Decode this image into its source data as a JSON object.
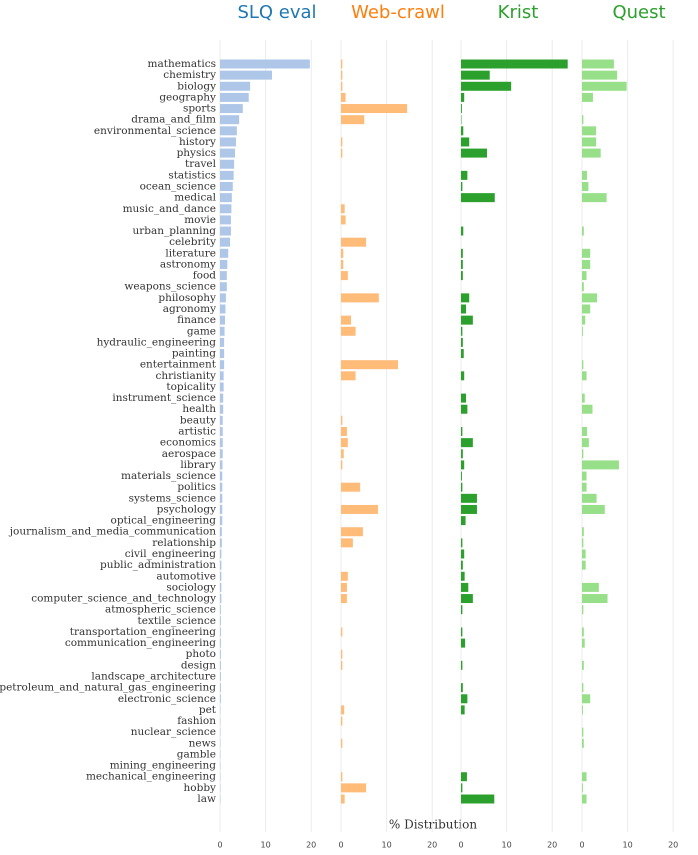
{
  "chart_data": {
    "type": "bar",
    "orientation": "horizontal",
    "xlabel": "% Distribution",
    "xlim": [
      0,
      25
    ],
    "xticks": [
      0,
      10,
      20
    ],
    "grid": true,
    "categories": [
      "mathematics",
      "chemistry",
      "biology",
      "geography",
      "sports",
      "drama_and_film",
      "environmental_science",
      "history",
      "physics",
      "travel",
      "statistics",
      "ocean_science",
      "medical",
      "music_and_dance",
      "movie",
      "urban_planning",
      "celebrity",
      "literature",
      "astronomy",
      "food",
      "weapons_science",
      "philosophy",
      "agronomy",
      "finance",
      "game",
      "hydraulic_engineering",
      "painting",
      "entertainment",
      "christianity",
      "topicality",
      "instrument_science",
      "health",
      "beauty",
      "artistic",
      "economics",
      "aerospace",
      "library",
      "materials_science",
      "politics",
      "systems_science",
      "psychology",
      "optical_engineering",
      "journalism_and_media_communication",
      "relationship",
      "civil_engineering",
      "public_administration",
      "automotive",
      "sociology",
      "computer_science_and_technology",
      "atmospheric_science",
      "textile_science",
      "transportation_engineering",
      "communication_engineering",
      "photo",
      "design",
      "landscape_architecture",
      "petroleum_and_natural_gas_engineering",
      "electronic_science",
      "pet",
      "fashion",
      "nuclear_science",
      "news",
      "gamble",
      "mining_engineering",
      "mechanical_engineering",
      "hobby",
      "law"
    ],
    "series": [
      {
        "name": "SLQ eval",
        "title_color": "#1f77b4",
        "color": "#aec7e8",
        "values": [
          19.7,
          11.4,
          6.6,
          6.3,
          5,
          4.2,
          3.7,
          3.5,
          3.3,
          3.1,
          3,
          2.8,
          2.6,
          2.5,
          2.4,
          2.4,
          2.2,
          1.8,
          1.6,
          1.5,
          1.5,
          1.3,
          1.2,
          1.1,
          1,
          0.9,
          0.9,
          0.9,
          0.8,
          0.8,
          0.7,
          0.7,
          0.6,
          0.6,
          0.6,
          0.6,
          0.55,
          0.5,
          0.5,
          0.5,
          0.5,
          0.5,
          0.4,
          0.4,
          0.3,
          0.3,
          0.3,
          0.3,
          0.3,
          0.2,
          0.2,
          0.2,
          0.2,
          0.2,
          0.2,
          0.2,
          0.2,
          0.2,
          0.1,
          0.1,
          0.1,
          0.1,
          0.1,
          0.1,
          0.1,
          0.1,
          0.1
        ]
      },
      {
        "name": "Web-crawl",
        "title_color": "#ff7f0e",
        "color": "#ffbb78",
        "values": [
          0.3,
          0.3,
          0.3,
          1,
          14.5,
          5.1,
          0,
          0.3,
          0.3,
          0,
          0,
          0,
          0,
          0.8,
          1,
          0,
          5.5,
          0.5,
          0.5,
          1.5,
          0,
          8.3,
          0,
          2.2,
          3.2,
          0,
          0,
          12.5,
          3.2,
          0,
          0,
          0,
          0.3,
          1.3,
          1.5,
          0.6,
          0.3,
          0,
          4.2,
          0,
          8.1,
          0,
          4.8,
          2.6,
          0,
          0,
          1.5,
          1.3,
          1.3,
          0,
          0,
          0.3,
          0,
          0.3,
          0.3,
          0,
          0,
          0,
          0.7,
          0.3,
          0,
          0.3,
          0,
          0,
          0.3,
          5.5,
          0.8
        ]
      },
      {
        "name": "Krist",
        "title_color": "#2ca02c",
        "color": "#2ca02c",
        "values": [
          23.4,
          6.3,
          11,
          0.7,
          0.2,
          0.1,
          0.5,
          1.8,
          5.7,
          0,
          1.4,
          0.3,
          7.4,
          0,
          0,
          0.5,
          0,
          0.4,
          0.4,
          0.4,
          0,
          1.8,
          1.1,
          2.6,
          0.3,
          0.4,
          0.6,
          0,
          0.7,
          0,
          1.1,
          1.4,
          0,
          0.3,
          2.6,
          0.4,
          0.7,
          0.2,
          0.3,
          3.5,
          3.5,
          1,
          0,
          0.3,
          0.7,
          0.4,
          0.8,
          1.6,
          2.6,
          0.3,
          0,
          0.3,
          0.9,
          0,
          0.3,
          0,
          0.4,
          1.4,
          0.8,
          0,
          0,
          0,
          0,
          0,
          1.3,
          0.3,
          7.3
        ]
      },
      {
        "name": "Quest",
        "title_color": "#2ca02c",
        "color": "#98df8a",
        "values": [
          7,
          7.7,
          9.8,
          2.4,
          0,
          0.3,
          3.1,
          3.1,
          4.1,
          0,
          1.1,
          1.4,
          5.4,
          0,
          0,
          0.4,
          0,
          1.8,
          1.8,
          1,
          0.4,
          3.3,
          1.8,
          0.7,
          0.2,
          0,
          0,
          0.3,
          1,
          0,
          0.6,
          2.3,
          0,
          1.1,
          1.5,
          0.3,
          8.1,
          1,
          1,
          3.2,
          5,
          0,
          0.4,
          0.3,
          0.8,
          0.8,
          0,
          3.7,
          5.6,
          0.3,
          0,
          0.4,
          0.6,
          0,
          0.4,
          0,
          0.3,
          1.8,
          0.2,
          0,
          0.3,
          0.4,
          0,
          0,
          1,
          0.2,
          1
        ]
      }
    ]
  }
}
